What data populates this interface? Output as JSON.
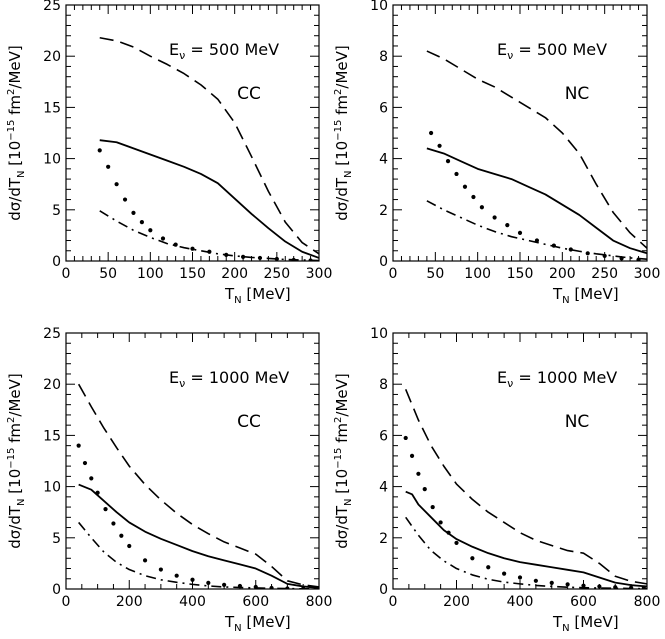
{
  "figure": {
    "ylabel_prefix": "dσ/dT",
    "ylabel_sub": "N",
    "ylabel_suffix": " [10",
    "ylabel_exp": "−15",
    "ylabel_unit": " fm",
    "ylabel_unit_exp": "2",
    "ylabel_end": "/MeV]",
    "xlabel_main": "T",
    "xlabel_sub": "N",
    "xlabel_unit": " [MeV]",
    "energy_symbol": "E",
    "energy_sub": "ν"
  },
  "chart_data": [
    {
      "type": "line",
      "energy_label": " = 500 MeV",
      "channel": "CC",
      "xlim": [
        0,
        300
      ],
      "ylim": [
        0,
        25
      ],
      "xticks": [
        0,
        50,
        100,
        150,
        200,
        250,
        300
      ],
      "yticks": [
        0,
        5,
        10,
        15,
        20,
        25
      ],
      "grid": false,
      "series": [
        {
          "style": "dashed",
          "x": [
            40,
            60,
            80,
            100,
            120,
            140,
            160,
            180,
            200,
            220,
            240,
            260,
            280,
            300
          ],
          "y": [
            21.8,
            21.5,
            20.9,
            20.0,
            19.2,
            18.3,
            17.2,
            15.8,
            13.5,
            10.2,
            6.8,
            3.8,
            1.8,
            0.7
          ]
        },
        {
          "style": "solid",
          "x": [
            40,
            60,
            80,
            100,
            120,
            140,
            160,
            180,
            200,
            220,
            240,
            260,
            280,
            300
          ],
          "y": [
            11.8,
            11.6,
            11.0,
            10.4,
            9.8,
            9.2,
            8.5,
            7.6,
            6.1,
            4.6,
            3.2,
            1.9,
            0.9,
            0.3
          ]
        },
        {
          "style": "dotted",
          "x": [
            40,
            50,
            60,
            70,
            80,
            90,
            100,
            115,
            130,
            150,
            170,
            190,
            210,
            230,
            250,
            270,
            290
          ],
          "y": [
            10.8,
            9.2,
            7.5,
            6.0,
            4.7,
            3.8,
            3.0,
            2.2,
            1.6,
            1.2,
            0.9,
            0.6,
            0.4,
            0.3,
            0.2,
            0.1,
            0.05
          ]
        },
        {
          "style": "dash-dot",
          "x": [
            40,
            60,
            80,
            100,
            120,
            140,
            160,
            180,
            200,
            220,
            240,
            260,
            280,
            300
          ],
          "y": [
            4.9,
            3.9,
            3.0,
            2.3,
            1.7,
            1.3,
            1.0,
            0.7,
            0.5,
            0.35,
            0.25,
            0.15,
            0.1,
            0.05
          ]
        }
      ]
    },
    {
      "type": "line",
      "energy_label": " = 500 MeV",
      "channel": "NC",
      "xlim": [
        0,
        300
      ],
      "ylim": [
        0,
        10
      ],
      "xticks": [
        0,
        50,
        100,
        150,
        200,
        250,
        300
      ],
      "yticks": [
        0,
        2,
        4,
        6,
        8,
        10
      ],
      "grid": false,
      "series": [
        {
          "style": "dashed",
          "x": [
            40,
            60,
            80,
            100,
            120,
            140,
            160,
            180,
            200,
            220,
            240,
            260,
            280,
            300
          ],
          "y": [
            8.2,
            7.9,
            7.5,
            7.1,
            6.8,
            6.4,
            6.0,
            5.6,
            5.0,
            4.2,
            3.0,
            1.9,
            1.1,
            0.5
          ]
        },
        {
          "style": "solid",
          "x": [
            40,
            60,
            80,
            100,
            120,
            140,
            160,
            180,
            200,
            220,
            240,
            260,
            280,
            300
          ],
          "y": [
            4.4,
            4.2,
            3.9,
            3.6,
            3.4,
            3.2,
            2.9,
            2.6,
            2.2,
            1.8,
            1.3,
            0.8,
            0.5,
            0.3
          ]
        },
        {
          "style": "dotted",
          "x": [
            45,
            55,
            65,
            75,
            85,
            95,
            105,
            120,
            135,
            150,
            170,
            190,
            210,
            230,
            250,
            270,
            290
          ],
          "y": [
            5.0,
            4.5,
            3.9,
            3.4,
            2.9,
            2.5,
            2.1,
            1.7,
            1.4,
            1.1,
            0.8,
            0.6,
            0.45,
            0.3,
            0.2,
            0.1,
            0.05
          ]
        },
        {
          "style": "dash-dot",
          "x": [
            40,
            60,
            80,
            100,
            120,
            140,
            160,
            180,
            200,
            220,
            240,
            260,
            280,
            300
          ],
          "y": [
            2.35,
            2.0,
            1.7,
            1.4,
            1.15,
            0.95,
            0.8,
            0.65,
            0.5,
            0.38,
            0.28,
            0.2,
            0.12,
            0.07
          ]
        }
      ]
    },
    {
      "type": "line",
      "energy_label": " = 1000 MeV",
      "channel": "CC",
      "xlim": [
        0,
        800
      ],
      "ylim": [
        0,
        25
      ],
      "xticks": [
        0,
        200,
        400,
        600,
        800
      ],
      "yticks": [
        0,
        5,
        10,
        15,
        20,
        25
      ],
      "grid": false,
      "series": [
        {
          "style": "dashed",
          "x": [
            40,
            80,
            120,
            160,
            200,
            250,
            300,
            350,
            400,
            450,
            500,
            550,
            600,
            650,
            700,
            750,
            800
          ],
          "y": [
            20.0,
            17.8,
            15.7,
            13.8,
            12.0,
            10.2,
            8.7,
            7.4,
            6.3,
            5.4,
            4.6,
            4.0,
            3.4,
            2.2,
            0.8,
            0.4,
            0.2
          ]
        },
        {
          "style": "solid",
          "x": [
            40,
            80,
            120,
            160,
            200,
            250,
            300,
            350,
            400,
            450,
            500,
            550,
            600,
            650,
            700,
            750,
            800
          ],
          "y": [
            10.2,
            9.7,
            8.6,
            7.5,
            6.5,
            5.6,
            4.9,
            4.3,
            3.7,
            3.2,
            2.8,
            2.4,
            2.0,
            1.3,
            0.5,
            0.25,
            0.1
          ]
        },
        {
          "style": "dotted",
          "x": [
            40,
            60,
            80,
            100,
            125,
            150,
            175,
            200,
            250,
            300,
            350,
            400,
            450,
            500,
            550,
            600,
            650,
            700,
            750,
            790
          ],
          "y": [
            14.0,
            12.3,
            10.8,
            9.4,
            7.8,
            6.4,
            5.2,
            4.2,
            2.8,
            1.9,
            1.3,
            0.9,
            0.6,
            0.4,
            0.3,
            0.2,
            0.1,
            0.05,
            0.03,
            0.02
          ]
        },
        {
          "style": "dash-dot",
          "x": [
            40,
            80,
            120,
            160,
            200,
            250,
            300,
            350,
            400,
            450,
            500,
            550,
            600,
            650,
            700,
            750,
            800
          ],
          "y": [
            6.5,
            5.0,
            3.6,
            2.6,
            1.9,
            1.3,
            0.9,
            0.65,
            0.45,
            0.3,
            0.2,
            0.15,
            0.1,
            0.07,
            0.04,
            0.02,
            0.01
          ]
        }
      ]
    },
    {
      "type": "line",
      "energy_label": " = 1000 MeV",
      "channel": "NC",
      "xlim": [
        0,
        800
      ],
      "ylim": [
        0,
        10
      ],
      "xticks": [
        0,
        200,
        400,
        600,
        800
      ],
      "yticks": [
        0,
        2,
        4,
        6,
        8,
        10
      ],
      "grid": false,
      "series": [
        {
          "style": "dashed",
          "x": [
            40,
            80,
            120,
            160,
            200,
            250,
            300,
            350,
            400,
            450,
            500,
            550,
            600,
            650,
            700,
            750,
            800
          ],
          "y": [
            7.8,
            6.6,
            5.6,
            4.8,
            4.1,
            3.5,
            3.0,
            2.6,
            2.2,
            1.9,
            1.7,
            1.5,
            1.4,
            1.0,
            0.5,
            0.3,
            0.2
          ]
        },
        {
          "style": "solid",
          "x": [
            40,
            60,
            80,
            120,
            160,
            200,
            250,
            300,
            350,
            400,
            450,
            500,
            550,
            600,
            650,
            700,
            750,
            800
          ],
          "y": [
            3.8,
            3.7,
            3.3,
            2.8,
            2.3,
            1.95,
            1.65,
            1.4,
            1.2,
            1.05,
            0.95,
            0.85,
            0.75,
            0.65,
            0.45,
            0.25,
            0.15,
            0.1
          ]
        },
        {
          "style": "dotted",
          "x": [
            40,
            60,
            80,
            100,
            125,
            150,
            175,
            200,
            250,
            300,
            350,
            400,
            450,
            500,
            550,
            600,
            650,
            700,
            750,
            790
          ],
          "y": [
            5.9,
            5.2,
            4.5,
            3.9,
            3.2,
            2.6,
            2.2,
            1.8,
            1.2,
            0.85,
            0.6,
            0.45,
            0.32,
            0.24,
            0.18,
            0.13,
            0.1,
            0.07,
            0.05,
            0.04
          ]
        },
        {
          "style": "dash-dot",
          "x": [
            40,
            80,
            120,
            160,
            200,
            250,
            300,
            350,
            400,
            450,
            500,
            550,
            600,
            650,
            700,
            750,
            800
          ],
          "y": [
            2.8,
            2.1,
            1.5,
            1.1,
            0.8,
            0.55,
            0.38,
            0.27,
            0.2,
            0.14,
            0.1,
            0.07,
            0.05,
            0.04,
            0.03,
            0.02,
            0.01
          ]
        }
      ]
    }
  ]
}
